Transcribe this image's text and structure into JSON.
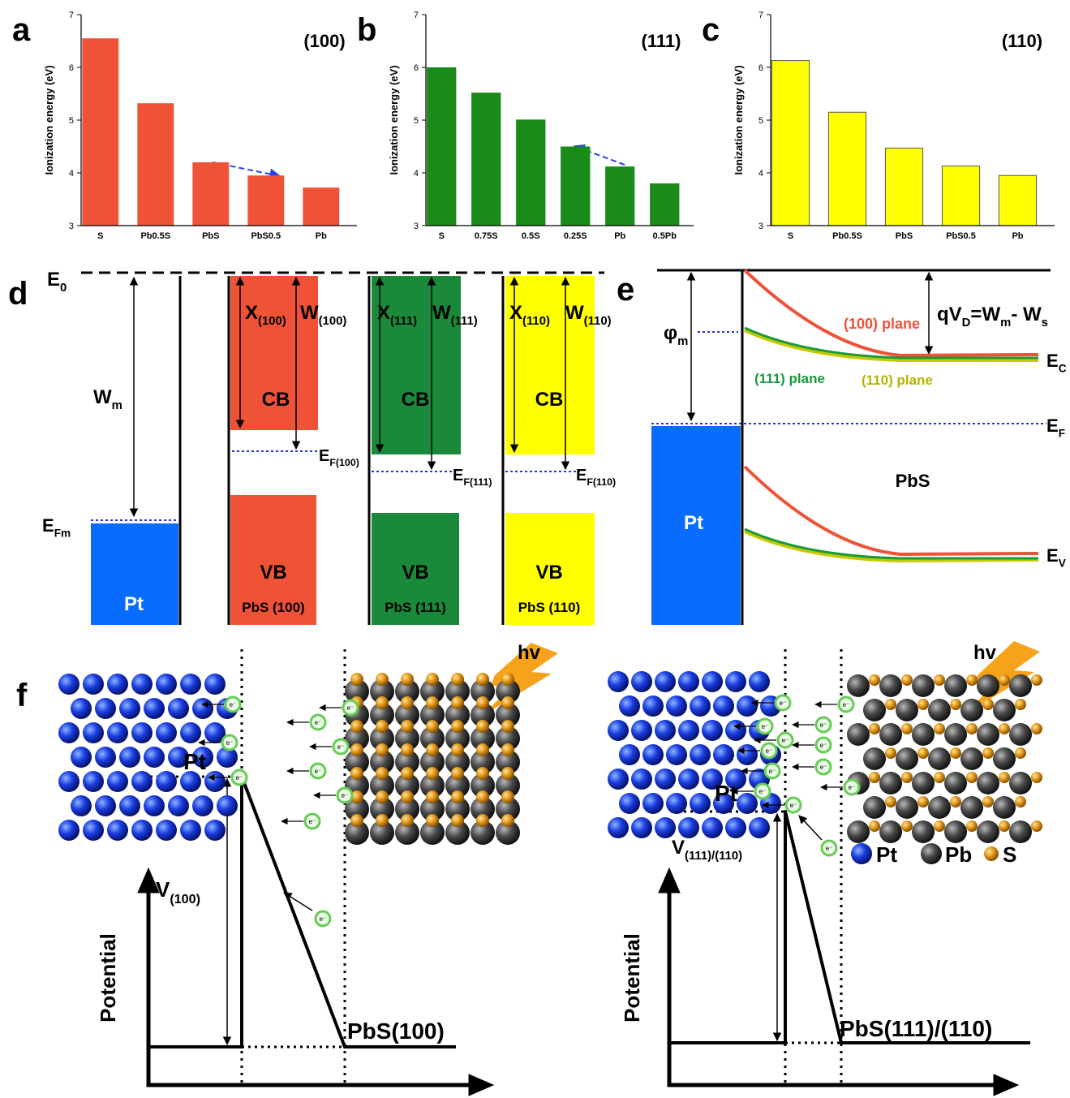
{
  "chart_data": [
    {
      "type": "bar",
      "panel": "a",
      "annotation": "(100)",
      "ylabel": "Ionization energy (eV)",
      "categories": [
        "S",
        "Pb0.5S",
        "PbS",
        "PbS0.5",
        "Pb"
      ],
      "values": [
        6.55,
        5.32,
        4.2,
        3.95,
        3.72
      ],
      "color": "#ee5237",
      "ylim": [
        3,
        7
      ],
      "yticks": [
        3,
        4,
        5,
        6,
        7
      ]
    },
    {
      "type": "bar",
      "panel": "b",
      "annotation": "(111)",
      "ylabel": "Ionization energy (eV)",
      "categories": [
        "S",
        "0.75S",
        "0.5S",
        "0.25S",
        "Pb",
        "0.5Pb"
      ],
      "values": [
        6.0,
        5.52,
        5.01,
        4.5,
        4.12,
        3.8
      ],
      "color": "#1a8a1a",
      "ylim": [
        3,
        7
      ],
      "yticks": [
        3,
        4,
        5,
        6,
        7
      ]
    },
    {
      "type": "bar",
      "panel": "c",
      "annotation": "(110)",
      "ylabel": "Ionization energy (eV)",
      "categories": [
        "S",
        "Pb0.5S",
        "PbS",
        "PbS0.5",
        "Pb"
      ],
      "values": [
        6.13,
        5.15,
        4.47,
        4.13,
        3.95
      ],
      "color": "#ffff00",
      "ylim": [
        3,
        7
      ],
      "yticks": [
        3,
        4,
        5,
        6,
        7
      ]
    }
  ],
  "diagram": {
    "d": {
      "label": "d",
      "e0": [
        "E",
        "0"
      ],
      "wm": [
        "W",
        "m"
      ],
      "efm": [
        "E",
        "Fm"
      ],
      "pt": [
        "Pt"
      ],
      "cb": [
        "CB"
      ],
      "vb": [
        "VB"
      ],
      "x100": [
        "X",
        "(100)"
      ],
      "w100": [
        "W",
        "(100)"
      ],
      "ef100": [
        "E",
        "F(100)"
      ],
      "pbs100": [
        "PbS (100)"
      ],
      "x111": [
        "X",
        "(111)"
      ],
      "w111": [
        "W",
        "(111)"
      ],
      "ef111": [
        "E",
        "F(111)"
      ],
      "pbs111": [
        "PbS (111)"
      ],
      "x110": [
        "X",
        "(110)"
      ],
      "w110": [
        "W",
        "(110)"
      ],
      "ef110": [
        "E",
        "F(110)"
      ],
      "pbs110": [
        "PbS (110)"
      ]
    },
    "e": {
      "label": "e",
      "phim": [
        "φ",
        "m"
      ],
      "qvd": [
        "qV",
        "D",
        "=W",
        "m",
        "- W",
        "s"
      ],
      "p100": [
        "(100) plane"
      ],
      "p111": [
        "(111) plane"
      ],
      "p110": [
        "(110) plane"
      ],
      "ec": [
        "E",
        "C"
      ],
      "ef": [
        "E",
        "F"
      ],
      "ev": [
        "E",
        "V"
      ],
      "pbs": [
        "PbS"
      ],
      "pt": [
        "Pt"
      ]
    },
    "f": {
      "label": "f",
      "hv": [
        "hv"
      ],
      "electron": "e⁻",
      "potential": [
        "Potential"
      ],
      "pt": [
        "Pt"
      ],
      "v100": [
        "V",
        "(100)"
      ],
      "pbs100": [
        "PbS(100)"
      ],
      "v111": [
        "V",
        "(111)/(110)"
      ],
      "pbs111": [
        "PbS(111)/(110)"
      ],
      "legend_pt": [
        "Pt"
      ],
      "legend_pb": [
        "Pb"
      ],
      "legend_s": [
        "S"
      ]
    }
  }
}
